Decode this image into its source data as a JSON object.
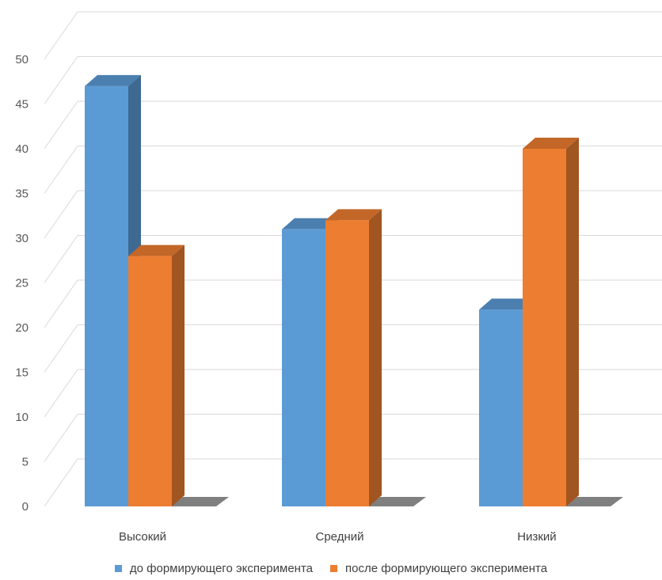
{
  "chart_data": {
    "type": "bar",
    "categories": [
      "Высокий",
      "Средний",
      "Низкий"
    ],
    "series": [
      {
        "name": "до формирующего эксперимента",
        "values": [
          47,
          31,
          22
        ],
        "color": "#5B9BD5"
      },
      {
        "name": "после формирующего эксперимента",
        "values": [
          28,
          32,
          40
        ],
        "color": "#ED7D31"
      }
    ],
    "y_ticks": [
      "0",
      "5",
      "10",
      "15",
      "20",
      "25",
      "30",
      "35",
      "40",
      "45",
      "50"
    ],
    "ylim": [
      0,
      50
    ],
    "grid": true,
    "legend_position": "bottom",
    "style": "3d-clustered-column"
  }
}
